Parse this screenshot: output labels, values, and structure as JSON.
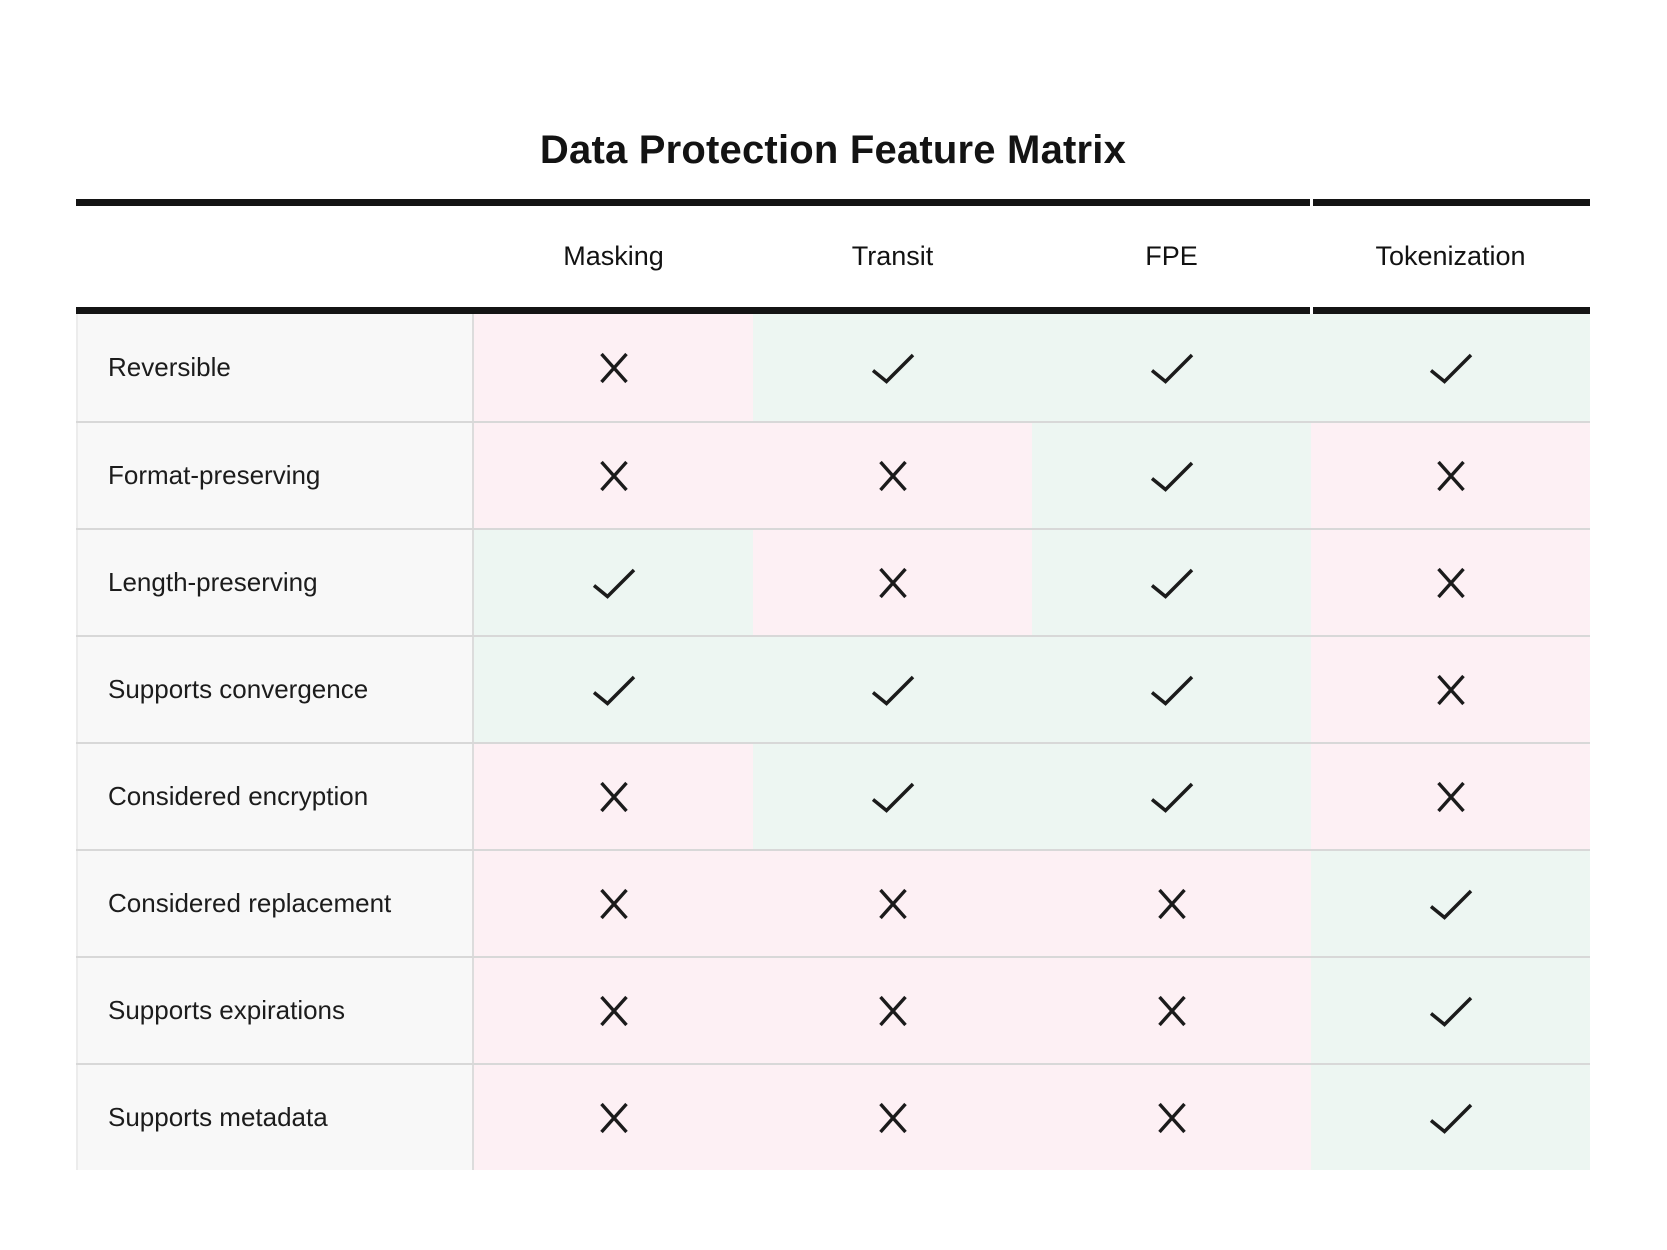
{
  "title": "Data Protection Feature Matrix",
  "table": {
    "columns": [
      "Masking",
      "Transit",
      "FPE",
      "Tokenization"
    ],
    "rows": [
      {
        "label": "Reversible",
        "values": [
          "no",
          "yes",
          "yes",
          "yes"
        ]
      },
      {
        "label": "Format-preserving",
        "values": [
          "no",
          "no",
          "yes",
          "no"
        ]
      },
      {
        "label": "Length-preserving",
        "values": [
          "yes",
          "no",
          "yes",
          "no"
        ]
      },
      {
        "label": "Supports convergence",
        "values": [
          "yes",
          "yes",
          "yes",
          "no"
        ]
      },
      {
        "label": "Considered encryption",
        "values": [
          "no",
          "yes",
          "yes",
          "no"
        ]
      },
      {
        "label": "Considered replacement",
        "values": [
          "no",
          "no",
          "no",
          "yes"
        ]
      },
      {
        "label": "Supports expirations",
        "values": [
          "no",
          "no",
          "no",
          "yes"
        ]
      },
      {
        "label": "Supports metadata",
        "values": [
          "no",
          "no",
          "no",
          "yes"
        ]
      }
    ]
  },
  "icons": {
    "yes": "check-icon",
    "no": "x-icon"
  },
  "colors": {
    "yes_cell_bg": "#edf6f2",
    "no_cell_bg": "#fdf0f4",
    "feature_cell_bg": "#f8f8f8",
    "mark": "#1b1b1b",
    "rule": "#141414",
    "row_divider": "#d8d8d8"
  },
  "chart_data": {
    "type": "table",
    "title": "Data Protection Feature Matrix",
    "columns": [
      "Masking",
      "Transit",
      "FPE",
      "Tokenization"
    ],
    "row_labels": [
      "Reversible",
      "Format-preserving",
      "Length-preserving",
      "Supports convergence",
      "Considered encryption",
      "Considered replacement",
      "Supports expirations",
      "Supports metadata"
    ],
    "values": [
      [
        false,
        true,
        true,
        true
      ],
      [
        false,
        false,
        true,
        false
      ],
      [
        true,
        false,
        true,
        false
      ],
      [
        true,
        true,
        true,
        false
      ],
      [
        false,
        true,
        true,
        false
      ],
      [
        false,
        false,
        false,
        true
      ],
      [
        false,
        false,
        false,
        true
      ],
      [
        false,
        false,
        false,
        true
      ]
    ],
    "legend": "check = supported, cross = not supported; green cell = yes, pink cell = no"
  }
}
